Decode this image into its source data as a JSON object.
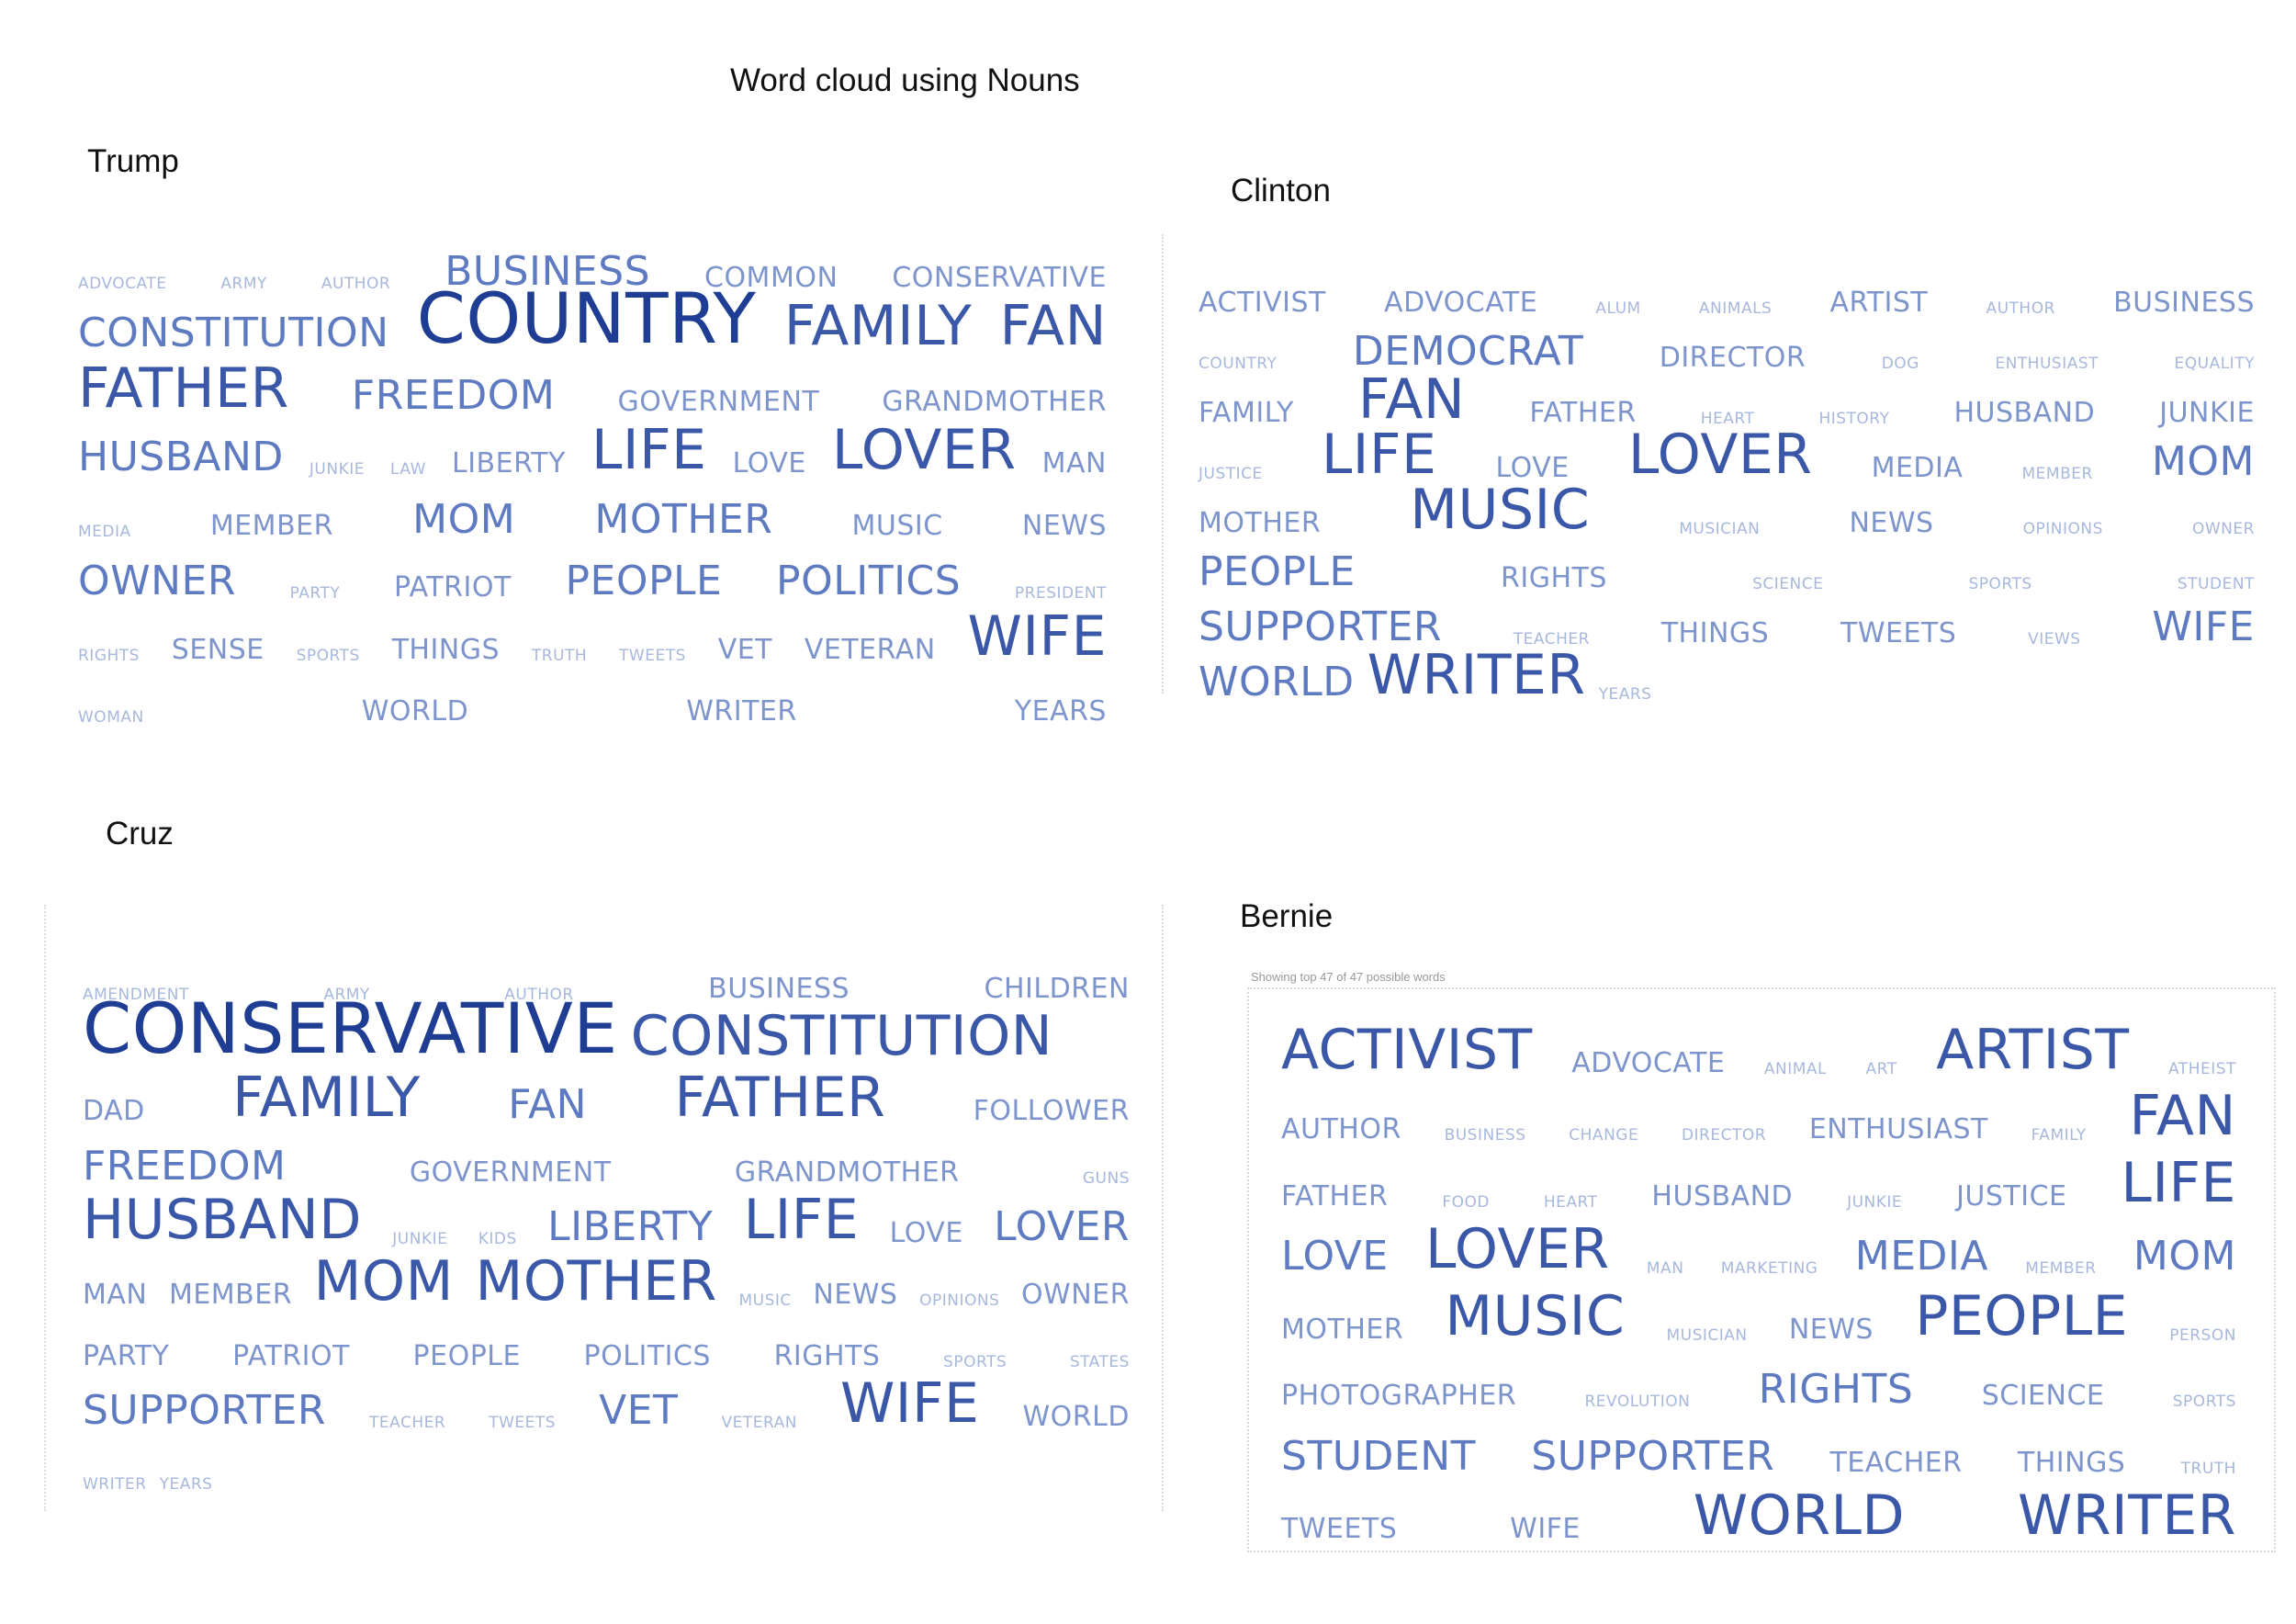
{
  "title": "Word cloud using Nouns",
  "panels": {
    "trump": {
      "label": "Trump",
      "rows": [
        [
          [
            "ADVOCATE",
            1
          ],
          [
            "ARMY",
            1
          ],
          [
            "AUTHOR",
            1
          ],
          [
            "BUSINESS",
            3
          ],
          [
            "COMMON",
            2
          ],
          [
            "CONSERVATIVE",
            2
          ]
        ],
        [
          [
            "CONSTITUTION",
            3
          ],
          [
            "COUNTRY",
            5
          ],
          [
            "FAMILY",
            4
          ],
          [
            "FAN",
            4
          ]
        ],
        [
          [
            "FATHER",
            4
          ],
          [
            "FREEDOM",
            3
          ],
          [
            "GOVERNMENT",
            2
          ],
          [
            "GRANDMOTHER",
            2
          ]
        ],
        [
          [
            "HUSBAND",
            3
          ],
          [
            "JUNKIE",
            1
          ],
          [
            "LAW",
            1
          ],
          [
            "LIBERTY",
            2
          ],
          [
            "LIFE",
            4
          ],
          [
            "LOVE",
            2
          ],
          [
            "LOVER",
            4
          ],
          [
            "MAN",
            2
          ]
        ],
        [
          [
            "MEDIA",
            1
          ],
          [
            "MEMBER",
            2
          ],
          [
            "MOM",
            3
          ],
          [
            "MOTHER",
            3
          ],
          [
            "MUSIC",
            2
          ],
          [
            "NEWS",
            2
          ]
        ],
        [
          [
            "OWNER",
            3
          ],
          [
            "PARTY",
            1
          ],
          [
            "PATRIOT",
            2
          ],
          [
            "PEOPLE",
            3
          ],
          [
            "POLITICS",
            3
          ],
          [
            "PRESIDENT",
            1
          ]
        ],
        [
          [
            "RIGHTS",
            1
          ],
          [
            "SENSE",
            2
          ],
          [
            "SPORTS",
            1
          ],
          [
            "THINGS",
            2
          ],
          [
            "TRUTH",
            1
          ],
          [
            "TWEETS",
            1
          ],
          [
            "VET",
            2
          ],
          [
            "VETERAN",
            2
          ],
          [
            "WIFE",
            4
          ]
        ],
        [
          [
            "WOMAN",
            1
          ],
          [
            "WORLD",
            2
          ],
          [
            "WRITER",
            2
          ],
          [
            "YEARS",
            2
          ]
        ]
      ]
    },
    "clinton": {
      "label": "Clinton",
      "rows": [
        [
          [
            "ACTIVIST",
            2
          ],
          [
            "ADVOCATE",
            2
          ],
          [
            "ALUM",
            1
          ],
          [
            "ANIMALS",
            1
          ],
          [
            "ARTIST",
            2
          ],
          [
            "AUTHOR",
            1
          ],
          [
            "BUSINESS",
            2
          ]
        ],
        [
          [
            "COUNTRY",
            1
          ],
          [
            "DEMOCRAT",
            3
          ],
          [
            "DIRECTOR",
            2
          ],
          [
            "DOG",
            1
          ],
          [
            "ENTHUSIAST",
            1
          ],
          [
            "EQUALITY",
            1
          ]
        ],
        [
          [
            "FAMILY",
            2
          ],
          [
            "FAN",
            4
          ],
          [
            "FATHER",
            2
          ],
          [
            "HEART",
            1
          ],
          [
            "HISTORY",
            1
          ],
          [
            "HUSBAND",
            2
          ],
          [
            "JUNKIE",
            2
          ]
        ],
        [
          [
            "JUSTICE",
            1
          ],
          [
            "LIFE",
            4
          ],
          [
            "LOVE",
            2
          ],
          [
            "LOVER",
            4
          ],
          [
            "MEDIA",
            2
          ],
          [
            "MEMBER",
            1
          ],
          [
            "MOM",
            3
          ]
        ],
        [
          [
            "MOTHER",
            2
          ],
          [
            "MUSIC",
            4
          ],
          [
            "MUSICIAN",
            1
          ],
          [
            "NEWS",
            2
          ],
          [
            "OPINIONS",
            1
          ],
          [
            "OWNER",
            1
          ]
        ],
        [
          [
            "PEOPLE",
            3
          ],
          [
            "RIGHTS",
            2
          ],
          [
            "SCIENCE",
            1
          ],
          [
            "SPORTS",
            1
          ],
          [
            "STUDENT",
            1
          ]
        ],
        [
          [
            "SUPPORTER",
            3
          ],
          [
            "TEACHER",
            1
          ],
          [
            "THINGS",
            2
          ],
          [
            "TWEETS",
            2
          ],
          [
            "VIEWS",
            1
          ],
          [
            "WIFE",
            3
          ]
        ],
        [
          [
            "WORLD",
            3
          ],
          [
            "WRITER",
            4
          ],
          [
            "YEARS",
            1
          ]
        ]
      ]
    },
    "cruz": {
      "label": "Cruz",
      "rows": [
        [
          [
            "AMENDMENT",
            1
          ],
          [
            "ARMY",
            1
          ],
          [
            "AUTHOR",
            1
          ],
          [
            "BUSINESS",
            2
          ],
          [
            "CHILDREN",
            2
          ]
        ],
        [
          [
            "CONSERVATIVE",
            5
          ],
          [
            "CONSTITUTION",
            4
          ]
        ],
        [
          [
            "DAD",
            2
          ],
          [
            "FAMILY",
            4
          ],
          [
            "FAN",
            3
          ],
          [
            "FATHER",
            4
          ],
          [
            "FOLLOWER",
            2
          ]
        ],
        [
          [
            "FREEDOM",
            3
          ],
          [
            "GOVERNMENT",
            2
          ],
          [
            "GRANDMOTHER",
            2
          ],
          [
            "GUNS",
            1
          ]
        ],
        [
          [
            "HUSBAND",
            4
          ],
          [
            "JUNKIE",
            1
          ],
          [
            "KIDS",
            1
          ],
          [
            "LIBERTY",
            3
          ],
          [
            "LIFE",
            4
          ],
          [
            "LOVE",
            2
          ],
          [
            "LOVER",
            3
          ]
        ],
        [
          [
            "MAN",
            2
          ],
          [
            "MEMBER",
            2
          ],
          [
            "MOM",
            4
          ],
          [
            "MOTHER",
            4
          ],
          [
            "MUSIC",
            1
          ],
          [
            "NEWS",
            2
          ],
          [
            "OPINIONS",
            1
          ],
          [
            "OWNER",
            2
          ]
        ],
        [
          [
            "PARTY",
            2
          ],
          [
            "PATRIOT",
            2
          ],
          [
            "PEOPLE",
            2
          ],
          [
            "POLITICS",
            2
          ],
          [
            "RIGHTS",
            2
          ],
          [
            "SPORTS",
            1
          ],
          [
            "STATES",
            1
          ]
        ],
        [
          [
            "SUPPORTER",
            3
          ],
          [
            "TEACHER",
            1
          ],
          [
            "TWEETS",
            1
          ],
          [
            "VET",
            3
          ],
          [
            "VETERAN",
            1
          ],
          [
            "WIFE",
            4
          ],
          [
            "WORLD",
            2
          ]
        ],
        [
          [
            "WRITER",
            1
          ],
          [
            "YEARS",
            1
          ]
        ]
      ]
    },
    "bernie": {
      "label": "Bernie",
      "note": "Showing top 47 of 47 possible words",
      "rows": [
        [
          [
            "ACTIVIST",
            4
          ],
          [
            "ADVOCATE",
            2
          ],
          [
            "ANIMAL",
            1
          ],
          [
            "ART",
            1
          ],
          [
            "ARTIST",
            4
          ],
          [
            "ATHEIST",
            1
          ]
        ],
        [
          [
            "AUTHOR",
            2
          ],
          [
            "BUSINESS",
            1
          ],
          [
            "CHANGE",
            1
          ],
          [
            "DIRECTOR",
            1
          ],
          [
            "ENTHUSIAST",
            2
          ],
          [
            "FAMILY",
            1
          ],
          [
            "FAN",
            4
          ]
        ],
        [
          [
            "FATHER",
            2
          ],
          [
            "FOOD",
            1
          ],
          [
            "HEART",
            1
          ],
          [
            "HUSBAND",
            2
          ],
          [
            "JUNKIE",
            1
          ],
          [
            "JUSTICE",
            2
          ],
          [
            "LIFE",
            4
          ]
        ],
        [
          [
            "LOVE",
            3
          ],
          [
            "LOVER",
            4
          ],
          [
            "MAN",
            1
          ],
          [
            "MARKETING",
            1
          ],
          [
            "MEDIA",
            3
          ],
          [
            "MEMBER",
            1
          ],
          [
            "MOM",
            3
          ]
        ],
        [
          [
            "MOTHER",
            2
          ],
          [
            "MUSIC",
            4
          ],
          [
            "MUSICIAN",
            1
          ],
          [
            "NEWS",
            2
          ],
          [
            "PEOPLE",
            4
          ],
          [
            "PERSON",
            1
          ]
        ],
        [
          [
            "PHOTOGRAPHER",
            2
          ],
          [
            "REVOLUTION",
            1
          ],
          [
            "RIGHTS",
            3
          ],
          [
            "SCIENCE",
            2
          ],
          [
            "SPORTS",
            1
          ]
        ],
        [
          [
            "STUDENT",
            3
          ],
          [
            "SUPPORTER",
            3
          ],
          [
            "TEACHER",
            2
          ],
          [
            "THINGS",
            2
          ],
          [
            "TRUTH",
            1
          ]
        ],
        [
          [
            "TWEETS",
            2
          ],
          [
            "WIFE",
            2
          ],
          [
            "WORLD",
            4
          ],
          [
            "WRITER",
            4
          ]
        ]
      ]
    }
  }
}
